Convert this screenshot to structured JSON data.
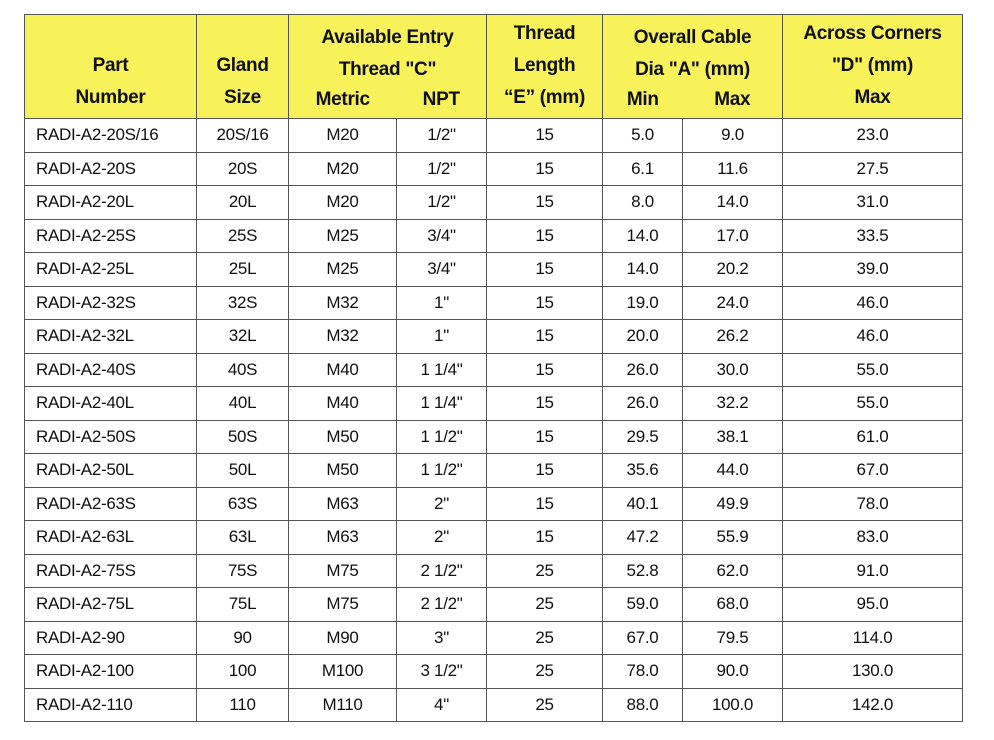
{
  "header": {
    "groups": [
      {
        "lines": [
          "Part",
          "Number"
        ]
      },
      {
        "lines": [
          "Gland",
          "Size"
        ]
      },
      {
        "lines": [
          "Available Entry",
          "Thread \"C\""
        ],
        "sub": [
          "Metric",
          "NPT"
        ]
      },
      {
        "lines": [
          "Thread",
          "Length",
          "“E” (mm)"
        ]
      },
      {
        "lines": [
          "Overall Cable",
          "Dia \"A\" (mm)"
        ],
        "sub": [
          "Min",
          "Max"
        ]
      },
      {
        "lines": [
          "Across Corners",
          "\"D\" (mm)",
          "Max"
        ]
      }
    ]
  },
  "table": {
    "rows": [
      [
        "RADI-A2-20S/16",
        "20S/16",
        "M20",
        "1/2\"",
        "15",
        "5.0",
        "9.0",
        "23.0"
      ],
      [
        "RADI-A2-20S",
        "20S",
        "M20",
        "1/2\"",
        "15",
        "6.1",
        "11.6",
        "27.5"
      ],
      [
        "RADI-A2-20L",
        "20L",
        "M20",
        "1/2\"",
        "15",
        "8.0",
        "14.0",
        "31.0"
      ],
      [
        "RADI-A2-25S",
        "25S",
        "M25",
        "3/4\"",
        "15",
        "14.0",
        "17.0",
        "33.5"
      ],
      [
        "RADI-A2-25L",
        "25L",
        "M25",
        "3/4\"",
        "15",
        "14.0",
        "20.2",
        "39.0"
      ],
      [
        "RADI-A2-32S",
        "32S",
        "M32",
        "1\"",
        "15",
        "19.0",
        "24.0",
        "46.0"
      ],
      [
        "RADI-A2-32L",
        "32L",
        "M32",
        "1\"",
        "15",
        "20.0",
        "26.2",
        "46.0"
      ],
      [
        "RADI-A2-40S",
        "40S",
        "M40",
        "1 1/4\"",
        "15",
        "26.0",
        "30.0",
        "55.0"
      ],
      [
        "RADI-A2-40L",
        "40L",
        "M40",
        "1 1/4\"",
        "15",
        "26.0",
        "32.2",
        "55.0"
      ],
      [
        "RADI-A2-50S",
        "50S",
        "M50",
        "1 1/2\"",
        "15",
        "29.5",
        "38.1",
        "61.0"
      ],
      [
        "RADI-A2-50L",
        "50L",
        "M50",
        "1 1/2\"",
        "15",
        "35.6",
        "44.0",
        "67.0"
      ],
      [
        "RADI-A2-63S",
        "63S",
        "M63",
        "2\"",
        "15",
        "40.1",
        "49.9",
        "78.0"
      ],
      [
        "RADI-A2-63L",
        "63L",
        "M63",
        "2\"",
        "15",
        "47.2",
        "55.9",
        "83.0"
      ],
      [
        "RADI-A2-75S",
        "75S",
        "M75",
        "2 1/2\"",
        "25",
        "52.8",
        "62.0",
        "91.0"
      ],
      [
        "RADI-A2-75L",
        "75L",
        "M75",
        "2 1/2\"",
        "25",
        "59.0",
        "68.0",
        "95.0"
      ],
      [
        "RADI-A2-90",
        "90",
        "M90",
        "3\"",
        "25",
        "67.0",
        "79.5",
        "114.0"
      ],
      [
        "RADI-A2-100",
        "100",
        "M100",
        "3 1/2\"",
        "25",
        "78.0",
        "90.0",
        "130.0"
      ],
      [
        "RADI-A2-110",
        "110",
        "M110",
        "4\"",
        "25",
        "88.0",
        "100.0",
        "142.0"
      ]
    ]
  }
}
